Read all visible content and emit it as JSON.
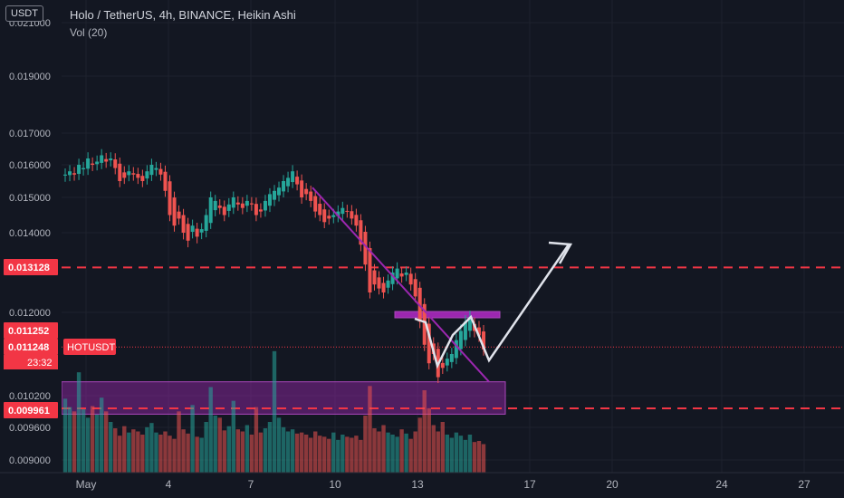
{
  "header": {
    "currency_button": "USDT",
    "title": "Holo / TetherUS, 4h, BINANCE, Heikin Ashi",
    "volume_indicator": "Vol (20)"
  },
  "price_axis": {
    "ticks": [
      "0.021000",
      "0.019000",
      "0.017000",
      "0.016000",
      "0.015000",
      "0.014000",
      "0.012000",
      "0.010200",
      "0.009600",
      "0.009000"
    ],
    "tick_values": [
      0.021,
      0.019,
      0.017,
      0.016,
      0.015,
      0.014,
      0.012,
      0.0102,
      0.0096,
      0.009
    ],
    "badges": [
      {
        "label": "0.013128",
        "value": 0.013128,
        "color": "#f23645"
      },
      {
        "label": "0.011252",
        "value": 0.011252,
        "color": "#f23645"
      },
      {
        "label": "0.011248",
        "value": 0.011248,
        "color": "#f23645"
      },
      {
        "label": "0.009961",
        "value": 0.009961,
        "color": "#f23645"
      }
    ],
    "symbol_tag": "HOTUSDT",
    "countdown": "23:32"
  },
  "time_axis": {
    "labels": [
      "May",
      "4",
      "7",
      "10",
      "13",
      "17",
      "20",
      "24",
      "27"
    ]
  },
  "chart_data": {
    "type": "candlestick",
    "symbol": "HOTUSDT",
    "interval": "4h",
    "exchange": "BINANCE",
    "style": "Heikin Ashi",
    "last_price": 0.011248,
    "previous_close_line": 0.011252,
    "horizontal_levels": [
      0.013128,
      0.009961
    ],
    "support_zone": [
      0.00985,
      0.0105
    ],
    "resistance_band": [
      0.0118,
      0.012
    ],
    "trendline_prices": [
      0.0153,
      0.0105
    ],
    "projected_path": [
      0.0102,
      0.0132
    ],
    "price_range": [
      0.0088,
      0.0213
    ],
    "colors": {
      "up": "#26a69a",
      "down": "#ef5350",
      "level": "#f23645",
      "zone": "#9c27b0",
      "arrow": "#e0e3eb"
    },
    "volume_range": [
      0,
      0.012
    ],
    "closes": [
      0.0157,
      0.0158,
      0.0157,
      0.016,
      0.0159,
      0.0162,
      0.016,
      0.0161,
      0.0163,
      0.0161,
      0.0162,
      0.0159,
      0.0155,
      0.0156,
      0.0158,
      0.0157,
      0.0156,
      0.0155,
      0.0158,
      0.016,
      0.0159,
      0.0157,
      0.0152,
      0.0145,
      0.0142,
      0.0144,
      0.014,
      0.0138,
      0.0142,
      0.0139,
      0.0141,
      0.0145,
      0.015,
      0.0149,
      0.0147,
      0.0145,
      0.0148,
      0.015,
      0.0148,
      0.0147,
      0.0149,
      0.0148,
      0.0145,
      0.0146,
      0.0149,
      0.0151,
      0.0152,
      0.0153,
      0.0155,
      0.0156,
      0.0158,
      0.0154,
      0.015,
      0.0151,
      0.0149,
      0.0146,
      0.0145,
      0.0143,
      0.0144,
      0.0145,
      0.0146,
      0.0147,
      0.0146,
      0.0144,
      0.0142,
      0.0137,
      0.0132,
      0.0125,
      0.0127,
      0.0126,
      0.0125,
      0.0128,
      0.013,
      0.0131,
      0.0129,
      0.013,
      0.0127,
      0.0124,
      0.0118,
      0.0113,
      0.0109,
      0.0111,
      0.0106,
      0.0108,
      0.011,
      0.0111,
      0.0114,
      0.0116,
      0.0118,
      0.0119,
      0.0116,
      0.0115,
      0.0112
    ],
    "volumes": [
      0.007,
      0.0062,
      0.0058,
      0.0095,
      0.006,
      0.0052,
      0.0063,
      0.0055,
      0.0071,
      0.0058,
      0.0048,
      0.0042,
      0.0035,
      0.0044,
      0.0038,
      0.0041,
      0.0039,
      0.0036,
      0.0043,
      0.0047,
      0.0038,
      0.0036,
      0.0039,
      0.0035,
      0.0032,
      0.0058,
      0.0041,
      0.0037,
      0.0064,
      0.0034,
      0.0033,
      0.0048,
      0.0081,
      0.0054,
      0.0052,
      0.004,
      0.0044,
      0.0068,
      0.0041,
      0.0039,
      0.0045,
      0.0036,
      0.0062,
      0.0038,
      0.0042,
      0.0048,
      0.0115,
      0.0052,
      0.0043,
      0.0039,
      0.0041,
      0.0037,
      0.0038,
      0.0036,
      0.0033,
      0.0039,
      0.0035,
      0.0034,
      0.0032,
      0.0038,
      0.0031,
      0.0036,
      0.0034,
      0.0033,
      0.0035,
      0.0031,
      0.0054,
      0.0082,
      0.0042,
      0.0039,
      0.0045,
      0.0038,
      0.0036,
      0.0034,
      0.0041,
      0.0037,
      0.0032,
      0.0039,
      0.0052,
      0.0078,
      0.0061,
      0.0045,
      0.0039,
      0.0048,
      0.0036,
      0.0033,
      0.0038,
      0.0035,
      0.0031,
      0.0036,
      0.0029,
      0.003,
      0.0027
    ]
  }
}
